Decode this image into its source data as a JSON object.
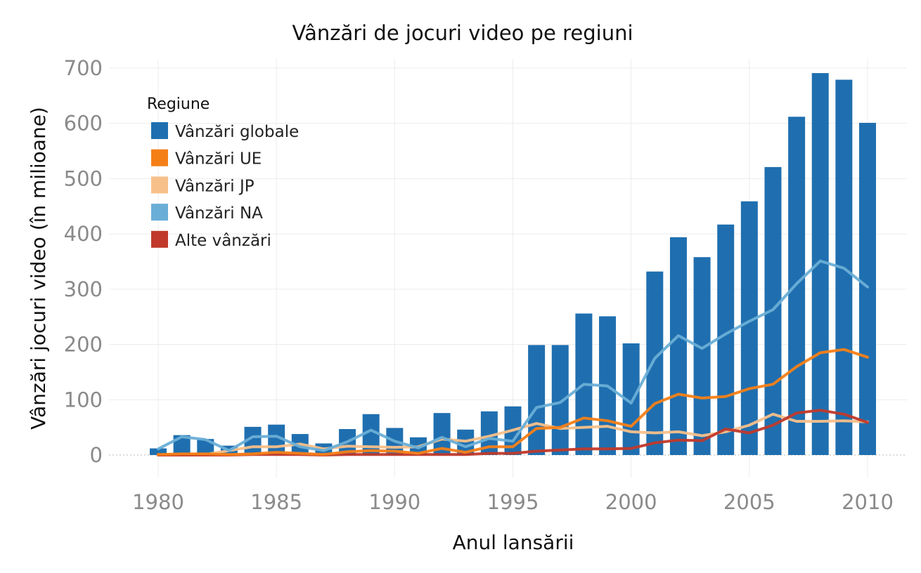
{
  "chart_data": {
    "type": "bar",
    "title": "Vânzări de jocuri video pe regiuni",
    "xlabel": "Anul lansării",
    "ylabel": "Vânzări jocuri video (în milioane)",
    "ylim": [
      0,
      700
    ],
    "xlim": [
      1980,
      2010
    ],
    "grid": true,
    "legend": {
      "title": "Regiune",
      "placement": "top-left"
    },
    "x_ticks": [
      "1980",
      "1985",
      "1990",
      "1995",
      "2000",
      "2005",
      "2010"
    ],
    "y_ticks": [
      "0",
      "100",
      "200",
      "300",
      "400",
      "500",
      "600",
      "700"
    ],
    "x": [
      1980,
      1981,
      1982,
      1983,
      1984,
      1985,
      1986,
      1987,
      1988,
      1989,
      1990,
      1991,
      1992,
      1993,
      1994,
      1995,
      1996,
      1997,
      1998,
      1999,
      2000,
      2001,
      2002,
      2003,
      2004,
      2005,
      2006,
      2007,
      2008,
      2009,
      2010
    ],
    "series": [
      {
        "name": "Vânzări globale",
        "kind": "bar",
        "color": "#1f6fb0",
        "values": [
          12,
          36,
          29,
          17,
          51,
          55,
          38,
          21,
          47,
          74,
          49,
          32,
          76,
          46,
          79,
          88,
          199,
          199,
          256,
          251,
          202,
          332,
          394,
          358,
          417,
          459,
          521,
          612,
          691,
          679,
          601
        ]
      },
      {
        "name": "Vânzări UE",
        "kind": "line",
        "color": "#f57f17",
        "values": [
          1,
          2,
          2,
          1,
          2,
          5,
          3,
          1,
          6,
          8,
          7,
          3,
          12,
          5,
          15,
          15,
          48,
          50,
          67,
          62,
          52,
          93,
          110,
          103,
          106,
          120,
          128,
          160,
          185,
          191,
          177
        ]
      },
      {
        "name": "Vânzări JP",
        "kind": "line",
        "color": "#f7c08a",
        "values": [
          0,
          0,
          1,
          8,
          15,
          15,
          20,
          11,
          16,
          15,
          14,
          15,
          29,
          25,
          34,
          45,
          57,
          48,
          50,
          52,
          42,
          40,
          42,
          35,
          42,
          54,
          74,
          61,
          61,
          62,
          60
        ]
      },
      {
        "name": "Vânzări NA",
        "kind": "line",
        "color": "#6aaed6",
        "values": [
          11,
          33,
          28,
          8,
          33,
          34,
          15,
          8,
          24,
          45,
          25,
          13,
          32,
          15,
          30,
          25,
          86,
          95,
          128,
          125,
          94,
          175,
          216,
          193,
          219,
          242,
          263,
          310,
          351,
          338,
          304
        ]
      },
      {
        "name": "Alte vânzări",
        "kind": "line",
        "color": "#c0392b",
        "values": [
          0,
          0,
          0,
          0,
          1,
          1,
          1,
          0,
          1,
          1,
          1,
          1,
          1,
          1,
          3,
          3,
          7,
          9,
          11,
          11,
          12,
          22,
          27,
          26,
          47,
          40,
          54,
          76,
          81,
          74,
          59
        ]
      }
    ]
  }
}
